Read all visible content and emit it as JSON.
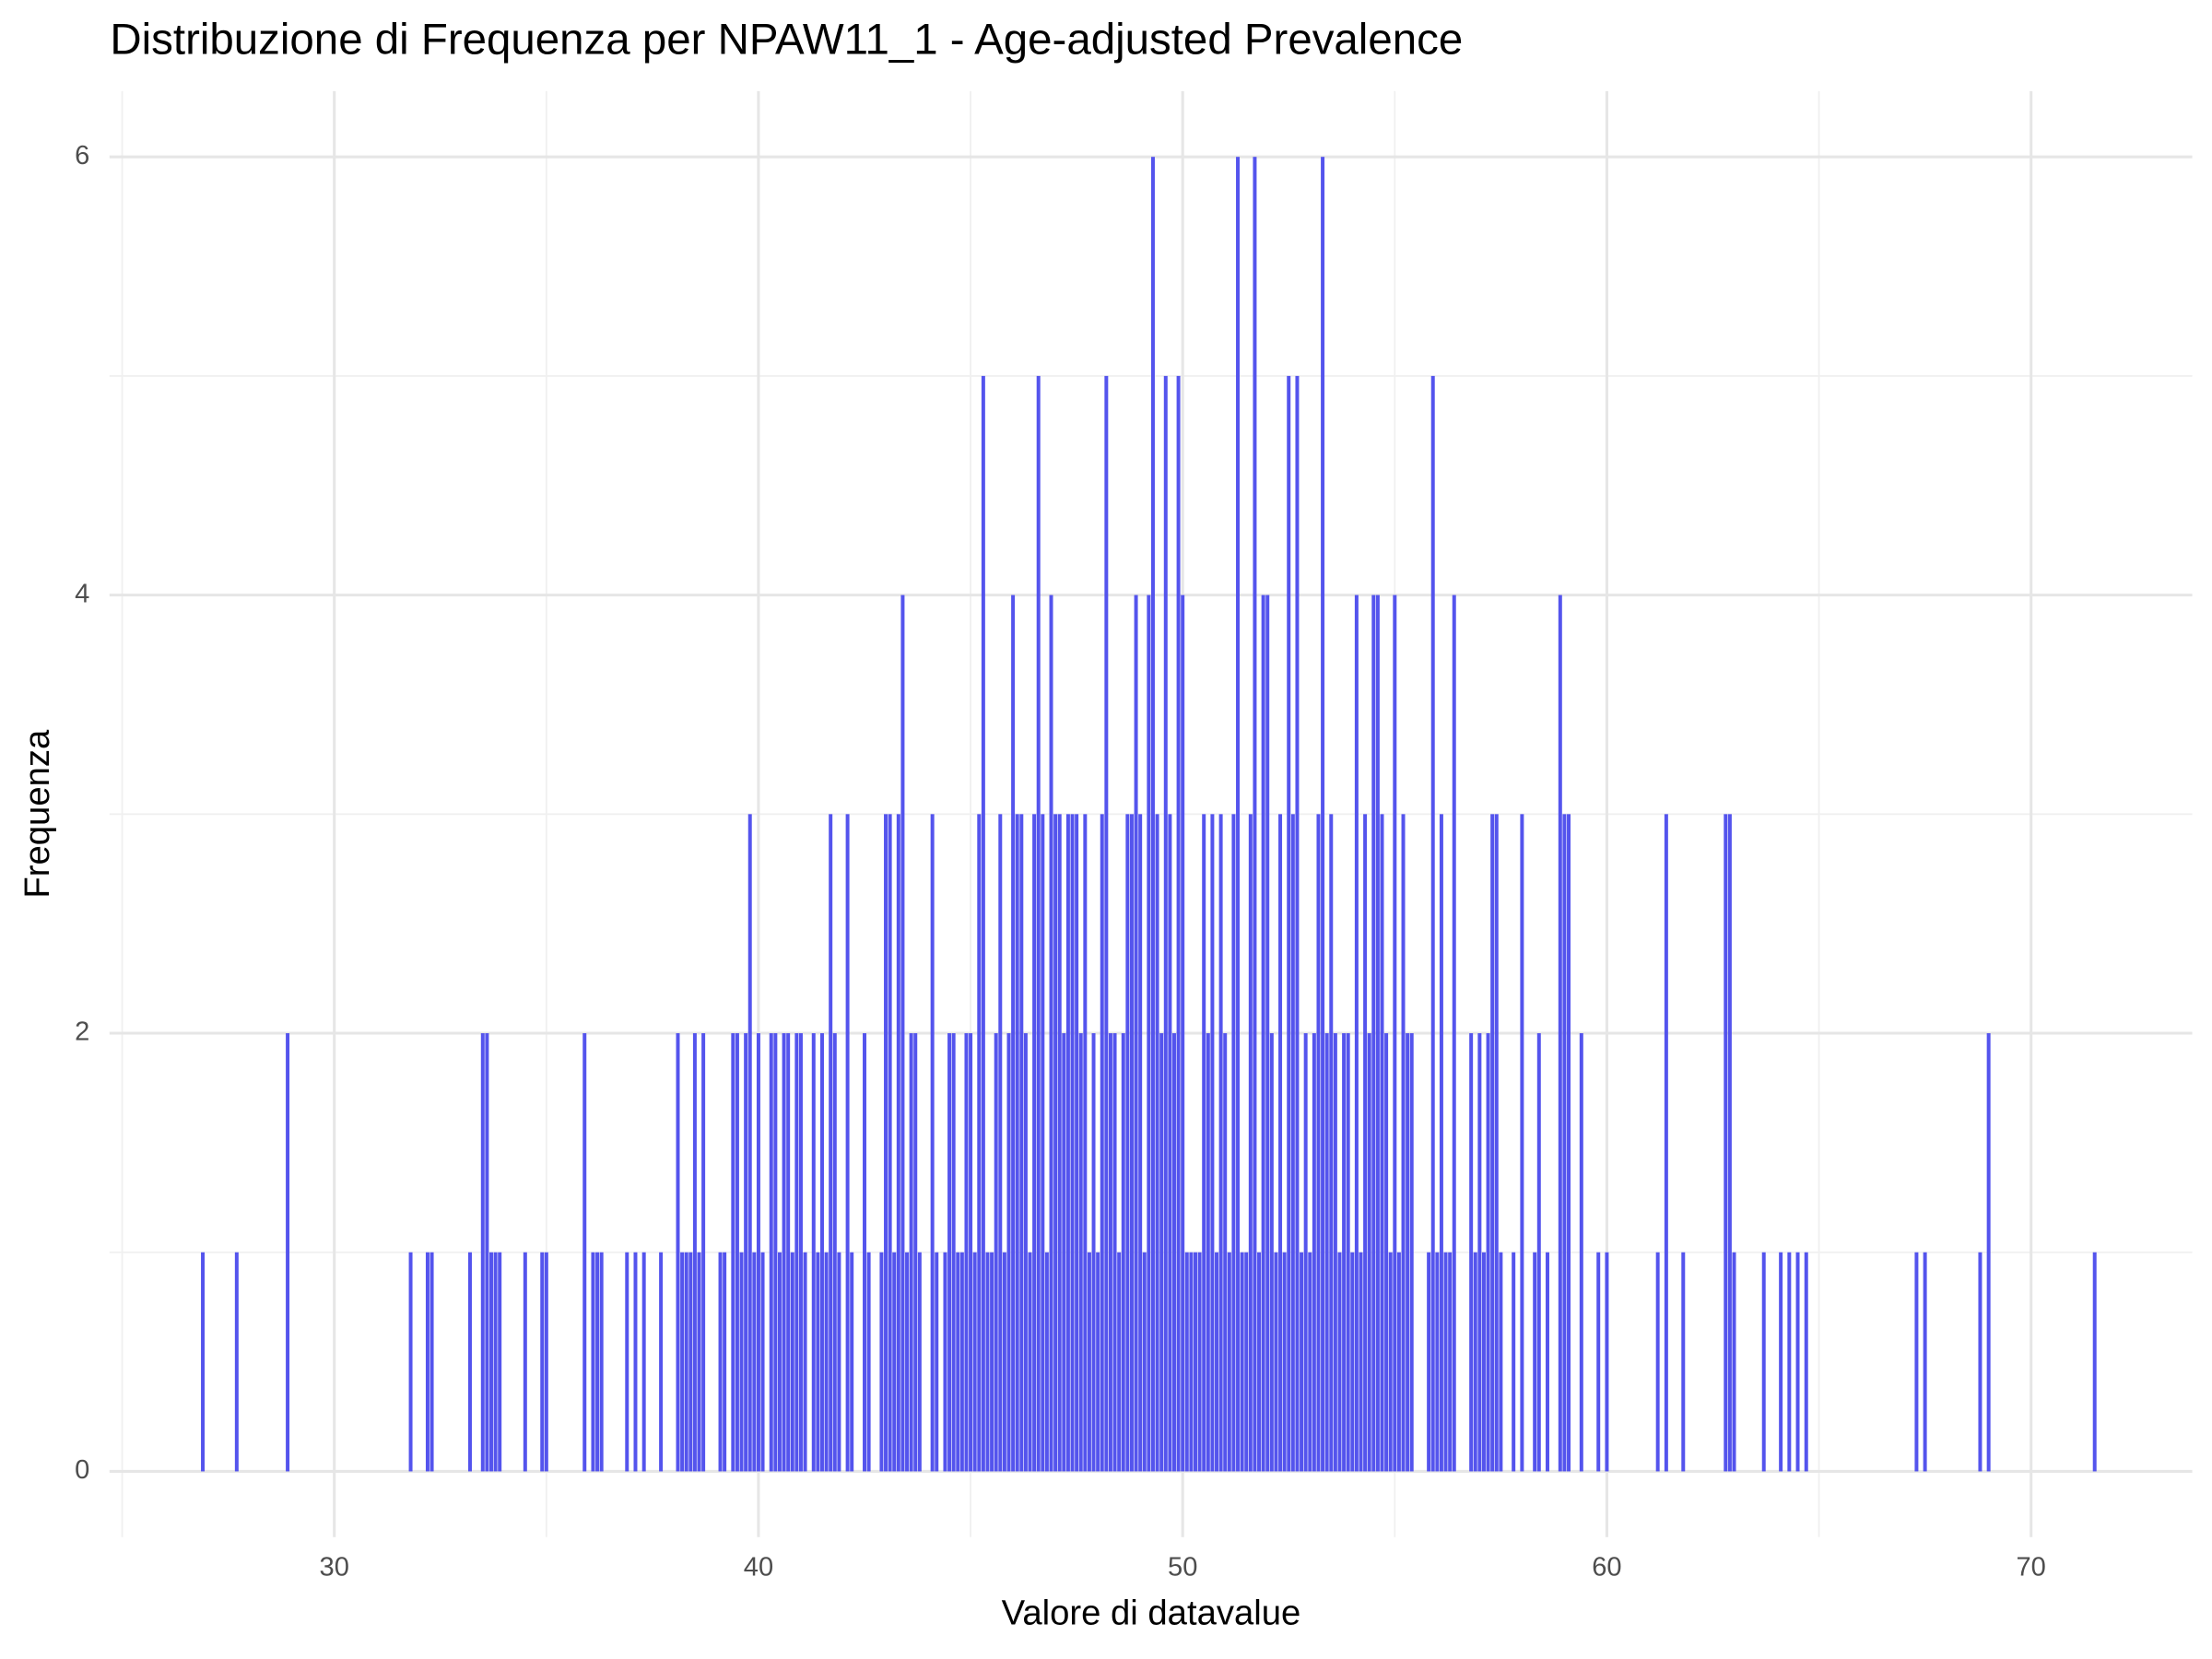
{
  "chart_data": {
    "type": "bar",
    "title": "Distribuzione di Frequenza per NPAW11_1 - Age-adjusted Prevalence",
    "x_label": "Valore di datavalue",
    "y_label": "Frequenza",
    "color": "#4b4bec",
    "x": [
      26.9,
      27.7,
      28.9,
      31.8,
      32.2,
      32.3,
      33.2,
      33.5,
      33.6,
      33.7,
      33.8,
      33.9,
      34.5,
      34.9,
      35.0,
      35.9,
      36.1,
      36.2,
      36.3,
      36.9,
      37.1,
      37.3,
      37.7,
      38.1,
      38.2,
      38.3,
      38.4,
      38.5,
      38.6,
      38.7,
      39.1,
      39.2,
      39.4,
      39.5,
      39.6,
      39.7,
      39.8,
      39.9,
      40.0,
      40.1,
      40.3,
      40.4,
      40.5,
      40.6,
      40.7,
      40.8,
      40.9,
      41.0,
      41.1,
      41.3,
      41.4,
      41.5,
      41.6,
      41.7,
      41.8,
      41.9,
      42.1,
      42.2,
      42.5,
      42.6,
      42.9,
      43.0,
      43.1,
      43.2,
      43.3,
      43.4,
      43.5,
      43.6,
      43.7,
      43.8,
      44.1,
      44.2,
      44.4,
      44.5,
      44.6,
      44.7,
      44.8,
      44.9,
      45.0,
      45.1,
      45.2,
      45.3,
      45.4,
      45.5,
      45.6,
      45.7,
      45.8,
      45.9,
      46.0,
      46.1,
      46.2,
      46.3,
      46.4,
      46.5,
      46.6,
      46.7,
      46.8,
      46.9,
      47.0,
      47.1,
      47.2,
      47.3,
      47.4,
      47.5,
      47.6,
      47.7,
      47.8,
      47.9,
      48.0,
      48.1,
      48.2,
      48.3,
      48.4,
      48.5,
      48.6,
      48.7,
      48.8,
      48.9,
      49.0,
      49.1,
      49.2,
      49.3,
      49.4,
      49.5,
      49.6,
      49.7,
      49.8,
      49.9,
      50.0,
      50.1,
      50.2,
      50.3,
      50.4,
      50.5,
      50.6,
      50.7,
      50.8,
      50.9,
      51.0,
      51.1,
      51.2,
      51.3,
      51.4,
      51.5,
      51.6,
      51.7,
      51.8,
      51.9,
      52.0,
      52.1,
      52.2,
      52.3,
      52.4,
      52.5,
      52.6,
      52.7,
      52.8,
      52.9,
      53.0,
      53.1,
      53.2,
      53.3,
      53.4,
      53.5,
      53.6,
      53.7,
      53.8,
      53.9,
      54.0,
      54.1,
      54.2,
      54.3,
      54.4,
      54.5,
      54.6,
      54.7,
      54.8,
      54.9,
      55.0,
      55.1,
      55.2,
      55.3,
      55.4,
      55.8,
      55.9,
      56.0,
      56.1,
      56.2,
      56.3,
      56.4,
      56.8,
      56.9,
      57.0,
      57.1,
      57.2,
      57.3,
      57.4,
      57.5,
      57.8,
      58.0,
      58.3,
      58.4,
      58.6,
      58.9,
      59.0,
      59.1,
      59.4,
      59.8,
      60.0,
      61.2,
      61.4,
      61.8,
      62.8,
      62.9,
      63.0,
      63.7,
      64.1,
      64.3,
      64.5,
      64.7,
      67.3,
      67.5,
      68.8,
      69.0,
      71.5
    ],
    "values": [
      1,
      1,
      2,
      1,
      1,
      1,
      1,
      2,
      2,
      1,
      1,
      1,
      1,
      1,
      1,
      2,
      1,
      1,
      1,
      1,
      1,
      1,
      1,
      2,
      1,
      1,
      1,
      2,
      1,
      2,
      1,
      1,
      2,
      2,
      1,
      2,
      3,
      1,
      2,
      1,
      2,
      2,
      1,
      2,
      2,
      1,
      2,
      2,
      1,
      2,
      1,
      2,
      1,
      3,
      2,
      1,
      3,
      1,
      2,
      1,
      1,
      3,
      3,
      1,
      3,
      4,
      1,
      2,
      2,
      1,
      3,
      1,
      1,
      2,
      2,
      1,
      1,
      2,
      2,
      1,
      3,
      5,
      1,
      1,
      2,
      3,
      1,
      2,
      4,
      3,
      3,
      2,
      1,
      3,
      5,
      3,
      1,
      4,
      3,
      3,
      2,
      3,
      3,
      3,
      2,
      3,
      1,
      2,
      1,
      3,
      5,
      2,
      2,
      1,
      2,
      3,
      3,
      4,
      3,
      1,
      4,
      6,
      3,
      2,
      5,
      3,
      2,
      5,
      4,
      1,
      1,
      1,
      1,
      3,
      2,
      3,
      1,
      3,
      2,
      1,
      3,
      6,
      1,
      1,
      3,
      6,
      1,
      4,
      4,
      2,
      1,
      3,
      1,
      5,
      3,
      5,
      1,
      2,
      1,
      2,
      3,
      6,
      2,
      3,
      2,
      1,
      2,
      2,
      1,
      4,
      1,
      3,
      2,
      4,
      4,
      3,
      2,
      1,
      4,
      1,
      3,
      2,
      2,
      1,
      5,
      1,
      3,
      1,
      1,
      4,
      2,
      1,
      2,
      1,
      2,
      3,
      3,
      1,
      1,
      3,
      1,
      2,
      1,
      4,
      3,
      3,
      2,
      1,
      1,
      1,
      3,
      1,
      3,
      3,
      1,
      1,
      1,
      1,
      1,
      1,
      1,
      1,
      1,
      2,
      1
    ],
    "xlim": [
      24.7,
      73.8
    ],
    "xticks": [
      30,
      40,
      50,
      60,
      70
    ],
    "x_minor_ticks": [
      25,
      35,
      45,
      55,
      65
    ],
    "ylim": [
      -0.3,
      6.3
    ],
    "yticks": [
      0,
      2,
      4,
      6
    ],
    "y_minor_ticks": [
      1,
      3,
      5
    ],
    "grid": true
  }
}
